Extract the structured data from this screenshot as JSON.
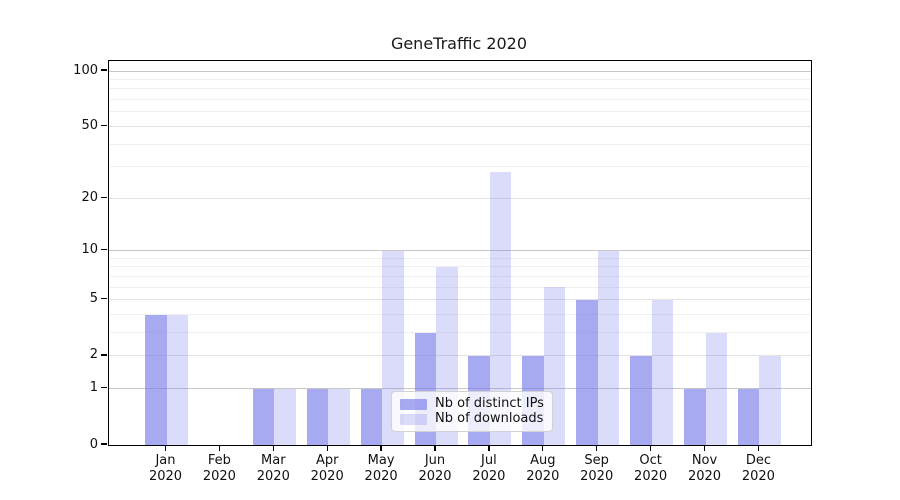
{
  "title": "GeneTraffic 2020",
  "chart_data": {
    "type": "bar",
    "title": "GeneTraffic 2020",
    "categories": [
      "Jan\n2020",
      "Feb\n2020",
      "Mar\n2020",
      "Apr\n2020",
      "May\n2020",
      "Jun\n2020",
      "Jul\n2020",
      "Aug\n2020",
      "Sep\n2020",
      "Oct\n2020",
      "Nov\n2020",
      "Dec\n2020"
    ],
    "series": [
      {
        "name": "Nb of distinct IPs",
        "color": "rgba(121,126,233,0.66)",
        "values": [
          4,
          0,
          1,
          1,
          1,
          3,
          2,
          2,
          5,
          2,
          1,
          1
        ]
      },
      {
        "name": "Nb of downloads",
        "color": "rgba(121,126,233,0.27)",
        "values": [
          4,
          0,
          1,
          1,
          10,
          8,
          28,
          6,
          10,
          5,
          3,
          2
        ]
      }
    ],
    "y_ticks": [
      0,
      1,
      2,
      5,
      10,
      20,
      50,
      100
    ],
    "y_major_gridlines": [
      1,
      10,
      100
    ],
    "y_mid_gridlines": [
      2,
      5,
      20,
      50
    ],
    "y_minor_gridlines": [
      3,
      4,
      6,
      7,
      8,
      9,
      30,
      40,
      60,
      70,
      80,
      90
    ],
    "scale": "log1p",
    "ylim": [
      0,
      113.3
    ],
    "grid": true,
    "legend_position": "lower-center-right-inside",
    "xlabel": "",
    "ylabel": ""
  },
  "colors": {
    "major_grid": "#c7c7c7",
    "mid_grid": "#e2e2e2",
    "minor_grid": "#f0f0f0",
    "spine": "#000000",
    "bar_base": "#797ee9"
  }
}
